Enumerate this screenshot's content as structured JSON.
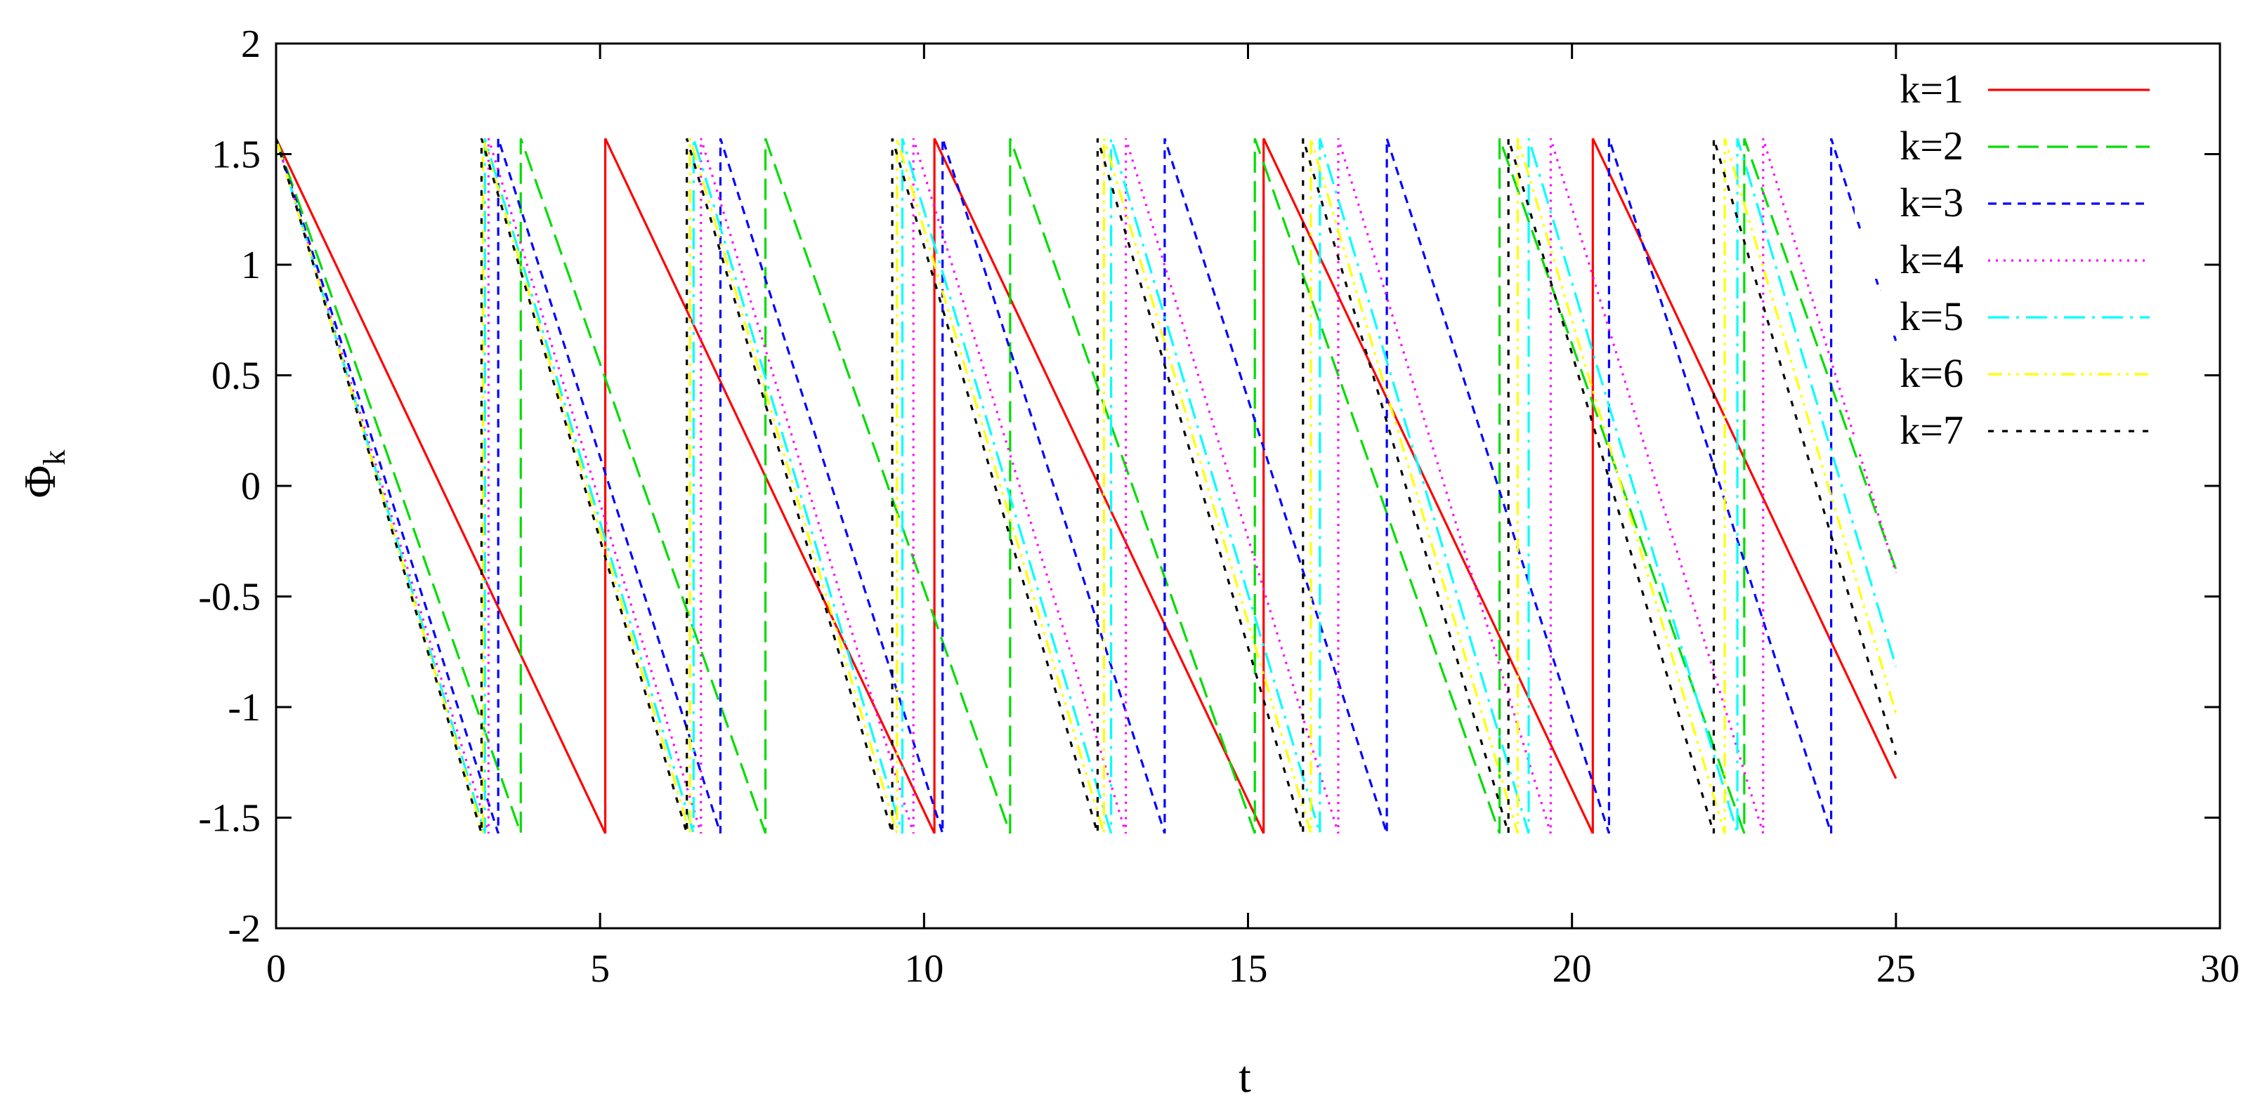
{
  "chart_data": {
    "type": "line",
    "title": "",
    "xlabel": "t",
    "ylabel": "Φ",
    "ylabel_subscript": "k",
    "xlim": [
      0,
      30
    ],
    "ylim": [
      -2,
      2
    ],
    "x_ticks": [
      0,
      5,
      10,
      15,
      20,
      25,
      30
    ],
    "x_tick_labels": [
      "0",
      "5",
      "10",
      "15",
      "20",
      "25",
      "30"
    ],
    "y_ticks": [
      -2,
      -1.5,
      -1,
      -0.5,
      0,
      0.5,
      1,
      1.5,
      2
    ],
    "y_tick_labels": [
      "-2",
      "-1.5",
      "-1",
      "-0.5",
      "0",
      "0.5",
      "1",
      "1.5",
      "2"
    ],
    "grid": false,
    "legend_position": "top-right",
    "t_max": 25,
    "phi_max": 1.5708,
    "phi_min": -1.5708,
    "series": [
      {
        "name": "k=1",
        "color": "#ff0000",
        "dash": "solid",
        "slope": 0.6184
      },
      {
        "name": "k=2",
        "color": "#00dd00",
        "dash": "long-dash",
        "slope": 0.8319
      },
      {
        "name": "k=3",
        "color": "#0000ff",
        "dash": "short-dash",
        "slope": 0.9163
      },
      {
        "name": "k=4",
        "color": "#ff00ff",
        "dash": "dotted",
        "slope": 0.9582
      },
      {
        "name": "k=5",
        "color": "#00ffff",
        "dash": "dash-dot",
        "slope": 0.9751
      },
      {
        "name": "k=6",
        "color": "#ffff00",
        "dash": "dash-dot-dot",
        "slope": 0.9836
      },
      {
        "name": "k=7",
        "color": "#000000",
        "dash": "dense-dash",
        "slope": 0.9911
      }
    ]
  }
}
